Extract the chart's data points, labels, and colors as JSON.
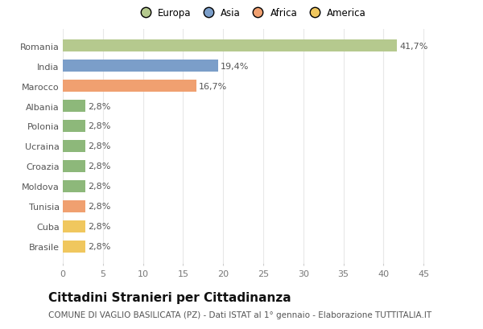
{
  "categories": [
    "Brasile",
    "Cuba",
    "Tunisia",
    "Moldova",
    "Croazia",
    "Ucraina",
    "Polonia",
    "Albania",
    "Marocco",
    "India",
    "Romania"
  ],
  "values": [
    2.8,
    2.8,
    2.8,
    2.8,
    2.8,
    2.8,
    2.8,
    2.8,
    16.7,
    19.4,
    41.7
  ],
  "colors": [
    "#f0c75e",
    "#f0c75e",
    "#f0a070",
    "#8db87a",
    "#8db87a",
    "#8db87a",
    "#8db87a",
    "#8db87a",
    "#f0a070",
    "#7b9ec9",
    "#b5c98e"
  ],
  "labels": [
    "2,8%",
    "2,8%",
    "2,8%",
    "2,8%",
    "2,8%",
    "2,8%",
    "2,8%",
    "2,8%",
    "16,7%",
    "19,4%",
    "41,7%"
  ],
  "legend": [
    {
      "label": "Europa",
      "color": "#b5c98e"
    },
    {
      "label": "Asia",
      "color": "#7b9ec9"
    },
    {
      "label": "Africa",
      "color": "#f0a070"
    },
    {
      "label": "America",
      "color": "#f0c75e"
    }
  ],
  "xlim": [
    0,
    47
  ],
  "xticks": [
    0,
    5,
    10,
    15,
    20,
    25,
    30,
    35,
    40,
    45
  ],
  "title": "Cittadini Stranieri per Cittadinanza",
  "subtitle": "COMUNE DI VAGLIO BASILICATA (PZ) - Dati ISTAT al 1° gennaio - Elaborazione TUTTITALIA.IT",
  "background_color": "#ffffff",
  "bar_edge_color": "none",
  "grid_color": "#e8e8e8",
  "label_fontsize": 8,
  "title_fontsize": 11,
  "subtitle_fontsize": 7.5,
  "ytick_fontsize": 8,
  "xtick_fontsize": 8
}
